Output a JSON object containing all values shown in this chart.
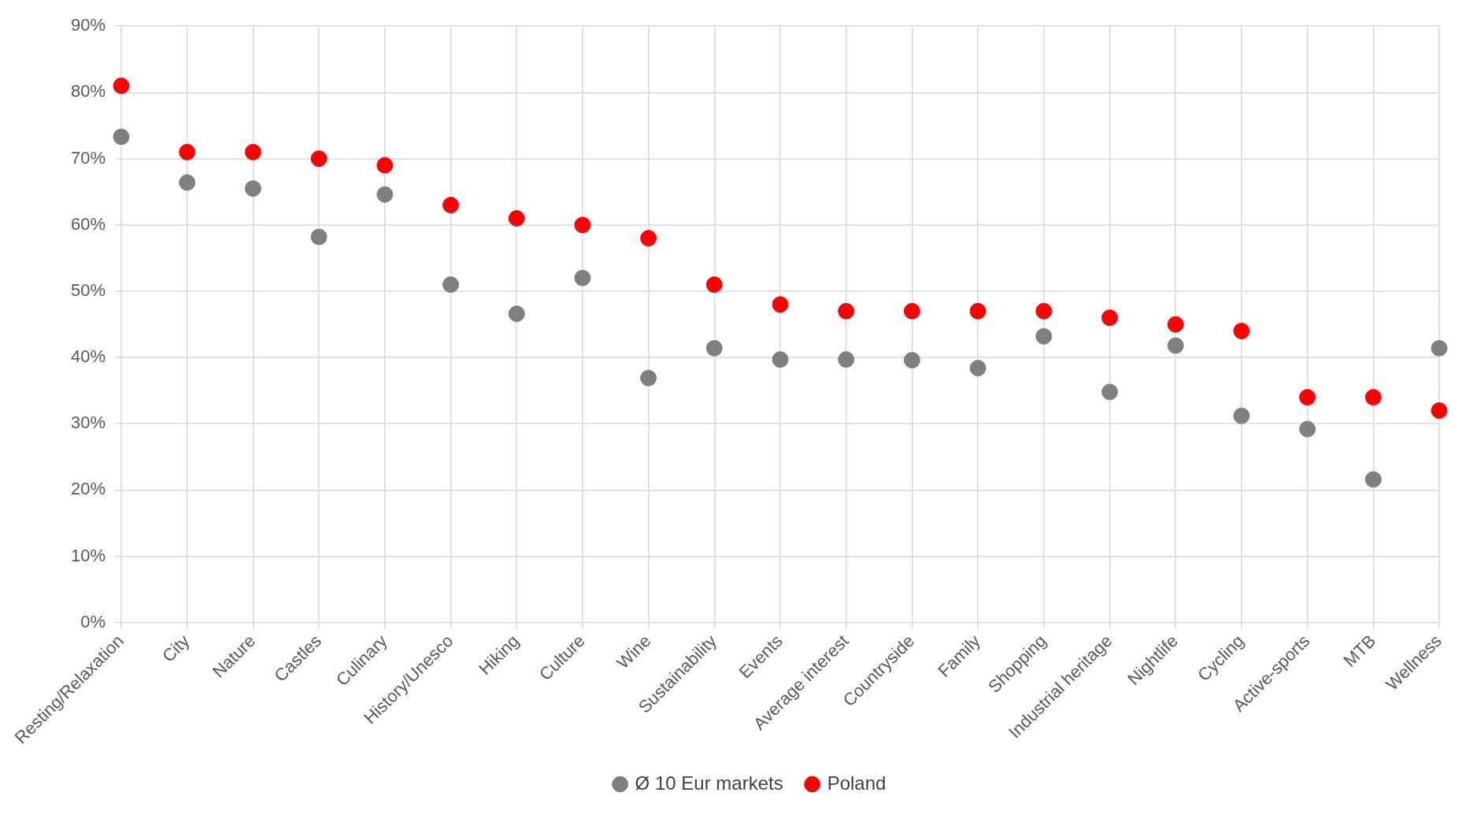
{
  "chart_data": {
    "type": "scatter",
    "categories": [
      "Resting/Relaxation",
      "City",
      "Nature",
      "Castles",
      "Culinary",
      "History/Unesco",
      "Hiking",
      "Culture",
      "Wine",
      "Sustainability",
      "Events",
      "Average interest",
      "Countryside",
      "Family",
      "Shopping",
      "Industrial heritage",
      "Nightlife",
      "Cycling",
      "Active-sports",
      "MTB",
      "Wellness"
    ],
    "series": [
      {
        "name": "Ø 10 Eur markets",
        "color": "#7f7f7f",
        "values": [
          73.3,
          66.4,
          65.5,
          58.2,
          64.6,
          51,
          46.6,
          52,
          36.9,
          41.4,
          39.7,
          39.7,
          39.6,
          38.4,
          43.2,
          34.8,
          41.8,
          31.2,
          29.2,
          21.6,
          41.4
        ]
      },
      {
        "name": "Poland",
        "color": "#ff0000",
        "values": [
          81,
          71,
          71,
          70,
          69,
          63,
          61,
          60,
          58,
          51,
          48,
          47,
          47,
          47,
          47,
          46,
          45,
          44,
          34,
          34,
          32
        ]
      }
    ],
    "ylim": [
      0,
      90
    ],
    "yticks": [
      {
        "value": 0,
        "label": "0%"
      },
      {
        "value": 10,
        "label": "10%"
      },
      {
        "value": 20,
        "label": "20%"
      },
      {
        "value": 30,
        "label": "30%"
      },
      {
        "value": 40,
        "label": "40%"
      },
      {
        "value": 50,
        "label": "50%"
      },
      {
        "value": 60,
        "label": "60%"
      },
      {
        "value": 70,
        "label": "70%"
      },
      {
        "value": 80,
        "label": "80%"
      },
      {
        "value": 90,
        "label": "90%"
      }
    ],
    "grid": true,
    "legend": "bottom",
    "marker": "circle"
  }
}
